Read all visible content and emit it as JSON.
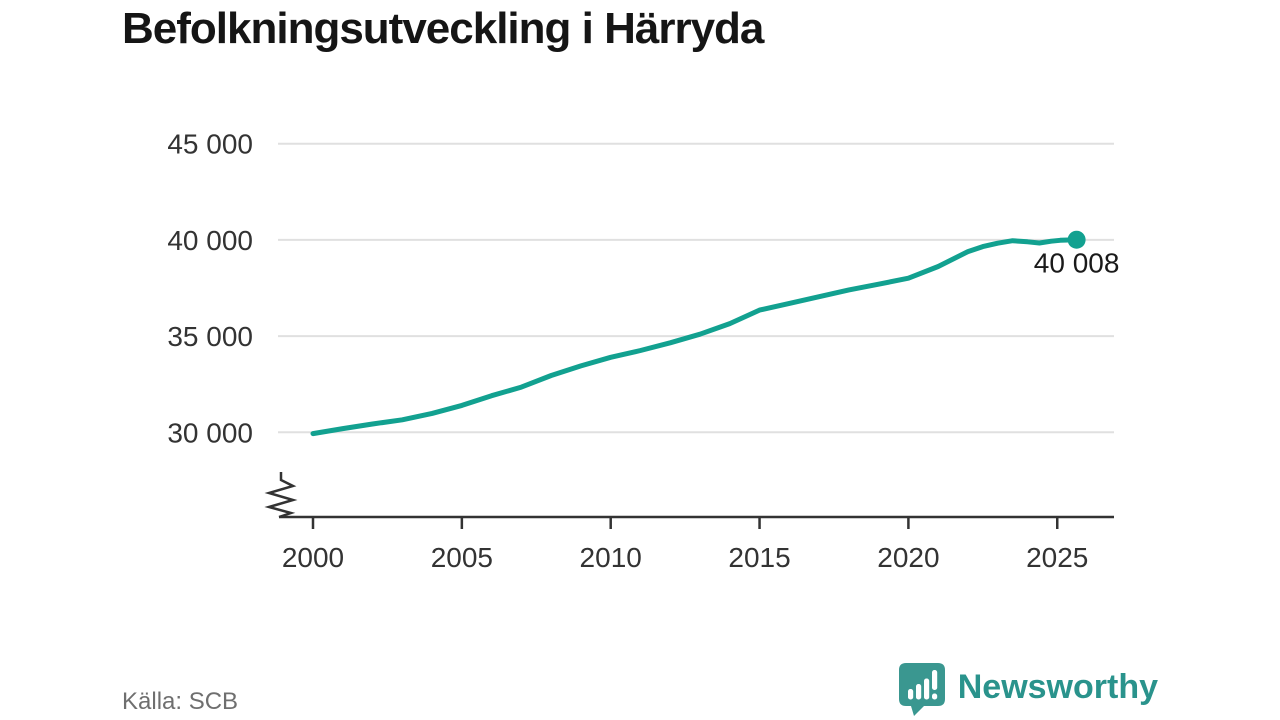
{
  "title": "Befolkningsutveckling i Härryda",
  "source": {
    "label": "Källa: SCB"
  },
  "branding": {
    "name": "Newsworthy",
    "icon": "newsworthy-speech-bubble-barchart-icon",
    "wordmark_color": "#2a938c",
    "icon_color": "#3a9790"
  },
  "chart_data": {
    "type": "line",
    "title": "Befolkningsutveckling i Härryda",
    "xlabel": "",
    "ylabel": "",
    "x": [
      2000,
      2001,
      2002,
      2003,
      2004,
      2005,
      2006,
      2007,
      2008,
      2009,
      2010,
      2011,
      2012,
      2013,
      2014,
      2015,
      2016,
      2017,
      2018,
      2019,
      2020,
      2021,
      2022,
      2022.5,
      2023,
      2023.5,
      2024,
      2024.4,
      2024.8,
      2025.1,
      2025.65
    ],
    "values": [
      29930,
      30190,
      30430,
      30650,
      30980,
      31400,
      31900,
      32350,
      32950,
      33450,
      33900,
      34250,
      34650,
      35100,
      35650,
      36350,
      36700,
      37050,
      37400,
      37700,
      38010,
      38620,
      39390,
      39650,
      39830,
      39960,
      39900,
      39840,
      39930,
      39980,
      40008
    ],
    "last_point_value": 40008,
    "last_point_label": "40 008",
    "xlim": [
      1998.9,
      2027
    ],
    "ylim_displayed": [
      27500,
      45600
    ],
    "yticks": [
      30000,
      35000,
      40000,
      45000
    ],
    "ytick_labels": [
      "30 000",
      "35 000",
      "40 000",
      "45 000"
    ],
    "xticks": [
      2000,
      2005,
      2010,
      2015,
      2020,
      2025
    ],
    "xtick_labels": [
      "2000",
      "2005",
      "2010",
      "2015",
      "2020",
      "2025"
    ],
    "axis_break_at_bottom": true,
    "grid": "horizontal",
    "legend": "none",
    "line_color": "#12a190",
    "marker_color": "#12a190",
    "grid_color": "#e0e0e0",
    "axis_color": "#333333",
    "tick_text_color": "#333333",
    "annotation_text_color": "#1a1a1a"
  }
}
